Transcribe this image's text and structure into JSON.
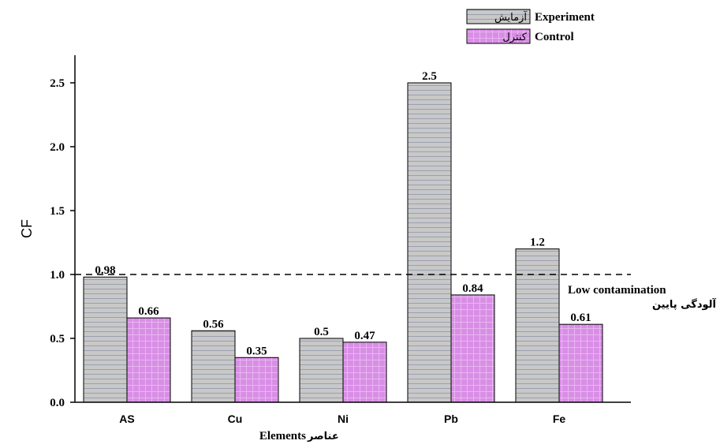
{
  "chart_data": {
    "type": "bar",
    "categories": [
      "AS",
      "Cu",
      "Ni",
      "Pb",
      "Fe"
    ],
    "series": [
      {
        "name": "Experiment",
        "name_fa": "آزمایش",
        "values": [
          0.98,
          0.56,
          0.5,
          2.5,
          1.2
        ],
        "labels": [
          "0.98",
          "0.56",
          "0.5",
          "2.5",
          "1.2"
        ],
        "color": "#c8c8c8",
        "pattern": "horizontal-lines"
      },
      {
        "name": "Control",
        "name_fa": "کنترل",
        "values": [
          0.66,
          0.35,
          0.47,
          0.84,
          0.61
        ],
        "labels": [
          "0.66",
          "0.35",
          "0.47",
          "0.84",
          "0.61"
        ],
        "color": "#d98ee6",
        "pattern": "grid"
      }
    ],
    "ylabel": "CF",
    "xlabel": "Elements",
    "xlabel_fa": "عناصر",
    "ylim": [
      0,
      2.75
    ],
    "yticks": [
      0,
      0.5,
      1.0,
      1.5,
      2.0,
      2.5
    ],
    "ytick_labels": [
      "0.0",
      "0.5",
      "1.0",
      "1.5",
      "2.0",
      "2.5"
    ],
    "reference_line": {
      "value": 1.0,
      "style": "dashed",
      "label": "Low contamination",
      "label_fa": "آلودگی پایین"
    },
    "grid": false,
    "legend_position": "top-right"
  }
}
